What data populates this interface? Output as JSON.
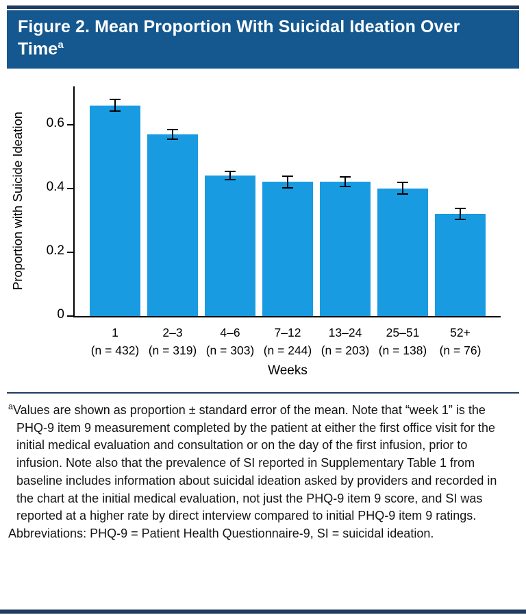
{
  "header": {
    "title": "Figure 2. Mean Proportion With Suicidal Ideation Over Time",
    "superscript": "a"
  },
  "chart_data": {
    "type": "bar",
    "title": "",
    "categories": [
      "1",
      "2–3",
      "4–6",
      "7–12",
      "13–24",
      "25–51",
      "52+"
    ],
    "n_labels": [
      "(n = 432)",
      "(n = 319)",
      "(n = 303)",
      "(n = 244)",
      "(n = 203)",
      "(n = 138)",
      "(n = 76)"
    ],
    "values": [
      0.66,
      0.57,
      0.44,
      0.42,
      0.42,
      0.4,
      0.32
    ],
    "errors": [
      0.018,
      0.015,
      0.013,
      0.018,
      0.015,
      0.018,
      0.018
    ],
    "xlabel": "Weeks",
    "ylabel": "Proportion with Suicide Ideation",
    "yticks": [
      0,
      0.2,
      0.4,
      0.6
    ],
    "ylim": [
      0,
      0.72
    ],
    "grid": false,
    "legend": "none",
    "bar_color": "#189BE1",
    "error_color": "#000000"
  },
  "footnote": {
    "marker": "a",
    "text": "Values are shown as proportion ± standard error of the mean. Note that “week 1” is the PHQ-9 item 9 measurement completed by the patient at either the first office visit for the initial medical evaluation and consultation or on the day of the first infusion, prior to infusion. Note also that the prevalence of SI reported in Supplementary Table 1 from baseline includes information about suicidal ideation asked by providers and recorded in the chart at the initial medical evaluation, not just the PHQ-9 item 9 score, and SI was reported at a higher rate by direct interview compared to initial PHQ-9 item 9 ratings."
  },
  "abbreviations": "Abbreviations: PHQ-9 = Patient Health Questionnaire-9, SI = suicidal ideation.",
  "colors": {
    "header_bg": "#14588F",
    "rule": "#1E3A5F",
    "divider": "#1E3A5F",
    "bottom_bar": "#1E3A5F"
  }
}
